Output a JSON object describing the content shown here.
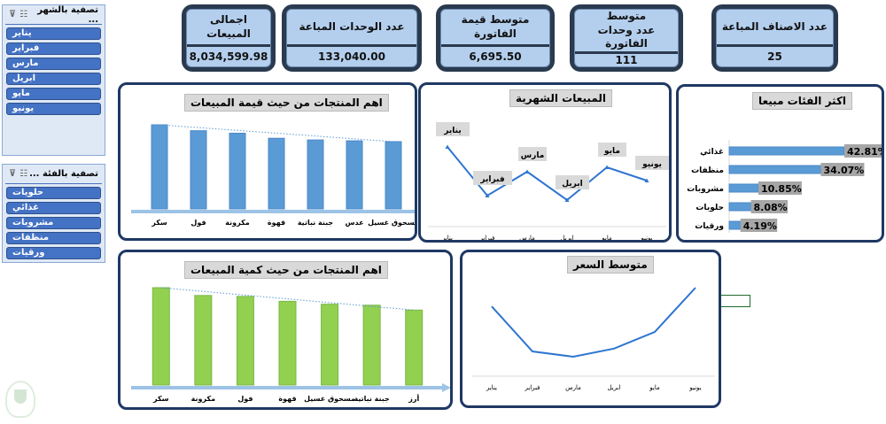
{
  "slicers": [
    {
      "title": "تصفية بالشهر ...",
      "items": [
        "يناير",
        "فبراير",
        "مارس",
        "ابريل",
        "مايو",
        "يونيو"
      ]
    },
    {
      "title": "تصفية بالفئة ...",
      "items": [
        "حلويات",
        "غذائي",
        "مشروبات",
        "منظفات",
        "ورقيات"
      ]
    }
  ],
  "kpis": [
    {
      "label": "اجمالى المبيعات",
      "value": "8,034,599.98"
    },
    {
      "label": "عدد الوحدات المباعة",
      "value": "133,040.00"
    },
    {
      "label": "متوسط قيمة الفاتورة",
      "value": "6,695.50"
    },
    {
      "label": "متوسط\nعدد وحدات الفاتورة",
      "value": "111"
    },
    {
      "label": "عدد الاصناف المباعة",
      "value": "25"
    }
  ],
  "colors": {
    "navy": "#1f3864",
    "blue_bar": "#5b9bd5",
    "green_bar": "#92d050",
    "line": "#2e75d0",
    "kpi_bg": "#b4cfee"
  },
  "chart_data": [
    {
      "id": "value",
      "type": "bar",
      "title": "اهم المنتجات من حيث قيمة المبيعات",
      "categories": [
        "سكر",
        "فول",
        "مكرونة",
        "قهوة",
        "جبنة نباتية",
        "عدس",
        "مسحوق غسيل"
      ],
      "values": [
        100,
        93,
        90,
        84,
        82,
        81,
        80
      ],
      "trendline": true,
      "color": "#5b9bd5"
    },
    {
      "id": "monthly",
      "type": "line",
      "title": "المبيعات الشهرية",
      "categories": [
        "يناير",
        "فبراير",
        "مارس",
        "ابريل",
        "مايو",
        "يونيو"
      ],
      "values": [
        260,
        205,
        232,
        200,
        237,
        222
      ],
      "data_labels": [
        "يناير",
        "فبراير",
        "مارس",
        "ابريل",
        "مايو",
        "يونيو"
      ]
    },
    {
      "id": "cats",
      "type": "bar",
      "orientation": "horizontal",
      "title": "اكثر الفئات مبيعا",
      "categories": [
        "غذائي",
        "منظفات",
        "مشروبات",
        "حلويات",
        "ورقيات"
      ],
      "values": [
        42.81,
        34.07,
        10.85,
        8.08,
        4.19
      ],
      "labels": [
        "42.81%",
        "34.07%",
        "10.85%",
        "8.08%",
        "4.19%"
      ]
    },
    {
      "id": "qty",
      "type": "bar",
      "title": "اهم المنتجات من حيث كمية المبيعات",
      "categories": [
        "سكر",
        "مكرونة",
        "فول",
        "قهوة",
        "مسحوق غسيل",
        "جبنة نباتية",
        "أرز"
      ],
      "values": [
        100,
        92,
        91,
        86,
        83,
        82,
        77
      ],
      "trendline": true,
      "color": "#92d050"
    },
    {
      "id": "price",
      "type": "line",
      "title": "متوسط السعر",
      "categories": [
        "يناير",
        "فبراير",
        "مارس",
        "ابريل",
        "مايو",
        "يونيو"
      ],
      "values": [
        247,
        120,
        105,
        128,
        175,
        300
      ]
    }
  ]
}
